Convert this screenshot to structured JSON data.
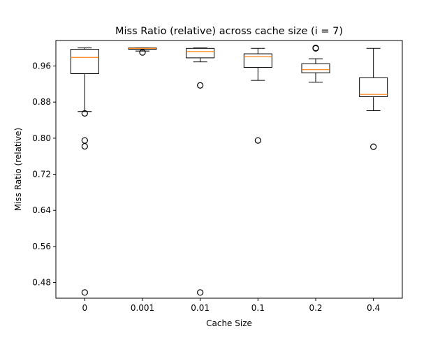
{
  "chart_data": {
    "type": "box",
    "title": "Miss Ratio (relative) across cache size (i = 7)",
    "xlabel": "Cache Size",
    "ylabel": "Miss Ratio (relative)",
    "categories": [
      "0",
      "0.001",
      "0.01",
      "0.1",
      "0.2",
      "0.4"
    ],
    "ylim": [
      0.4453,
      1.0165
    ],
    "yticks": [
      0.48,
      0.56,
      0.64,
      0.72,
      0.8,
      0.88,
      0.96
    ],
    "ytick_labels": [
      "0.48",
      "0.56",
      "0.64",
      "0.72",
      "0.80",
      "0.88",
      "0.96"
    ],
    "grid": false,
    "boxes": [
      {
        "category": "0",
        "whisker_low": 0.859,
        "q1": 0.943,
        "median": 0.979,
        "q3": 0.997,
        "whisker_high": 1.0,
        "outliers": [
          0.855,
          0.795,
          0.782,
          0.458
        ]
      },
      {
        "category": "0.001",
        "whisker_low": 0.993,
        "q1": 0.997,
        "median": 0.999,
        "q3": 1.0,
        "whisker_high": 1.0,
        "outliers": [
          0.99
        ]
      },
      {
        "category": "0.01",
        "whisker_low": 0.969,
        "q1": 0.978,
        "median": 0.992,
        "q3": 0.999,
        "whisker_high": 1.0,
        "outliers": [
          0.917,
          0.458
        ]
      },
      {
        "category": "0.1",
        "whisker_low": 0.928,
        "q1": 0.957,
        "median": 0.981,
        "q3": 0.987,
        "whisker_high": 0.999,
        "outliers": [
          0.795
        ]
      },
      {
        "category": "0.2",
        "whisker_low": 0.924,
        "q1": 0.945,
        "median": 0.952,
        "q3": 0.965,
        "whisker_high": 0.976,
        "outliers": [
          1.0,
          0.999
        ]
      },
      {
        "category": "0.4",
        "whisker_low": 0.861,
        "q1": 0.892,
        "median": 0.897,
        "q3": 0.934,
        "whisker_high": 0.999,
        "outliers": [
          0.781
        ]
      }
    ],
    "colors": {
      "box": "#000000",
      "median": "#ff7f0e",
      "outlier": "#000000",
      "axes": "#000000",
      "background": "#ffffff"
    }
  }
}
